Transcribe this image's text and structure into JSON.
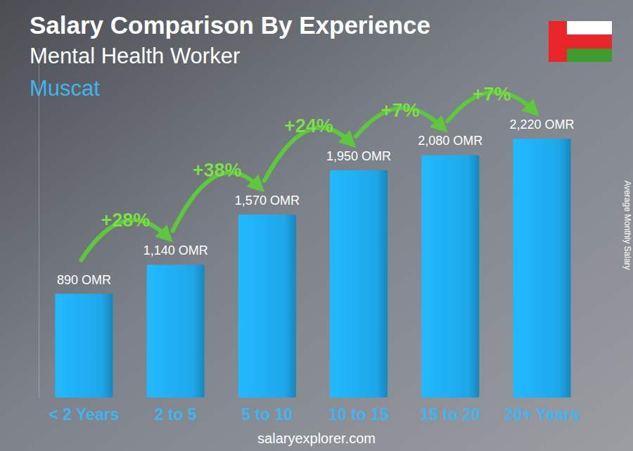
{
  "chart_data": {
    "type": "bar",
    "title": "Salary Comparison By Experience",
    "subtitle": "Mental Health Worker",
    "location": "Muscat",
    "y_label": "Average Monthly Salary",
    "footer": "salaryexplorer.com",
    "categories": [
      "< 2 Years",
      "2 to 5",
      "5 to 10",
      "10 to 15",
      "15 to 20",
      "20+ Years"
    ],
    "values": [
      890,
      1140,
      1570,
      1950,
      2080,
      2220
    ],
    "value_labels": [
      "890 OMR",
      "1,140 OMR",
      "1,570 OMR",
      "1,950 OMR",
      "2,080 OMR",
      "2,220 OMR"
    ],
    "annotations": [
      "+28%",
      "+38%",
      "+24%",
      "+7%",
      "+7%"
    ],
    "color": "#1ea7ea",
    "ylim": [
      0,
      3000
    ],
    "grid": false,
    "data_labels": true,
    "tick_labels": "x"
  }
}
